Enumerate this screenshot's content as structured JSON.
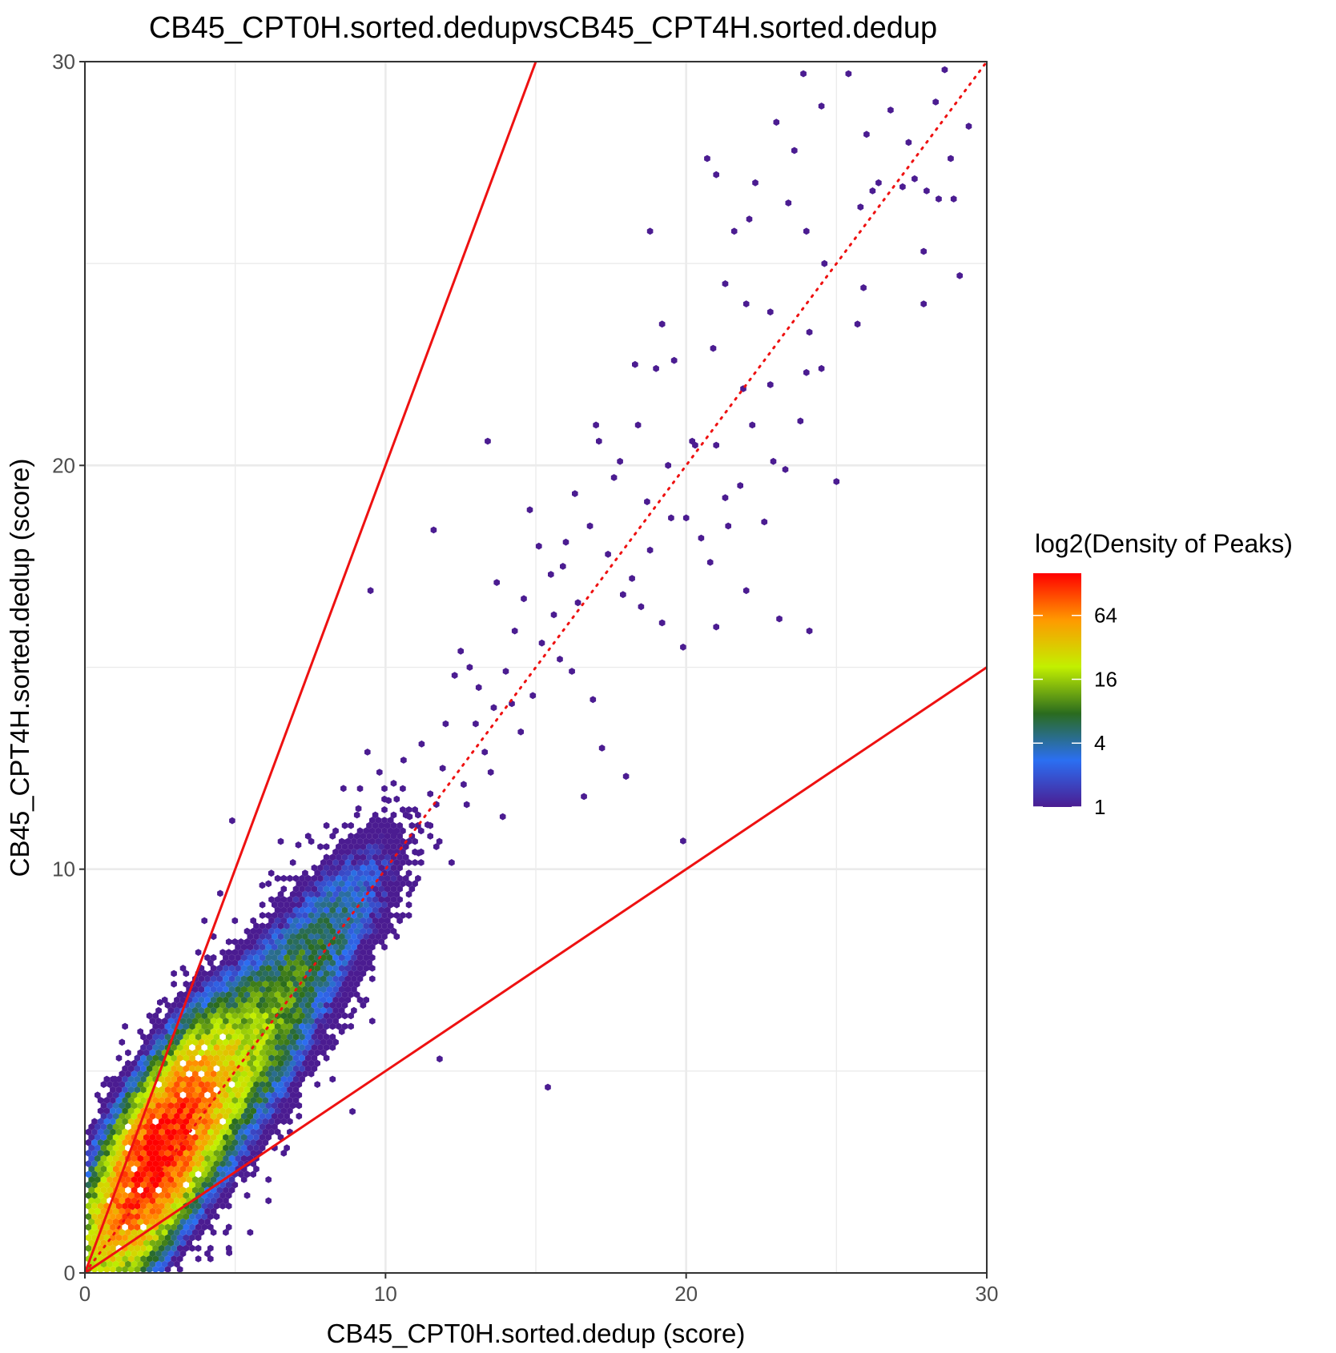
{
  "chart_data": {
    "type": "heatmap",
    "subtype": "hexbin density scatter",
    "title": "CB45_CPT0H.sorted.dedupvsCB45_CPT4H.sorted.dedup",
    "xlabel": "CB45_CPT0H.sorted.dedup (score)",
    "ylabel": "CB45_CPT4H.sorted.dedup (score)",
    "xlim": [
      0,
      30
    ],
    "ylim": [
      0,
      30
    ],
    "x_ticks": [
      "0",
      "10",
      "20",
      "30"
    ],
    "y_ticks": [
      "0",
      "10",
      "20",
      "30"
    ],
    "grid": true,
    "reference_lines": [
      {
        "name": "y = 2x",
        "slope": 2,
        "intercept": 0,
        "style": "solid",
        "color": "#ee1111"
      },
      {
        "name": "y = 0.5x",
        "slope": 0.5,
        "intercept": 0,
        "style": "solid",
        "color": "#ee1111"
      },
      {
        "name": "y = x",
        "slope": 1,
        "intercept": 0,
        "style": "dotted",
        "color": "#ee1111"
      }
    ],
    "legend": {
      "title": "log2(Density of Peaks)",
      "position": "right",
      "scale": "log2",
      "breaks": [
        1,
        4,
        16,
        64
      ],
      "labels": [
        "1",
        "4",
        "16",
        "64"
      ],
      "max": 160,
      "colors": [
        "#4b1c91",
        "#2b6ff2",
        "#2a6b1e",
        "#c2f000",
        "#ff9900",
        "#ff0000"
      ]
    },
    "density_cores": [
      {
        "x": 2.4,
        "y": 2.9,
        "sx": 1.1,
        "sy": 1.4,
        "rho": 0.72,
        "peak": 150
      },
      {
        "x": 4.5,
        "y": 4.6,
        "sx": 1.7,
        "sy": 1.8,
        "rho": 0.82,
        "peak": 22
      },
      {
        "x": 8.0,
        "y": 8.4,
        "sx": 1.3,
        "sy": 1.3,
        "rho": 0.75,
        "peak": 4
      }
    ],
    "sparse_points": [
      [
        13.4,
        20.6
      ],
      [
        20.3,
        20.5
      ],
      [
        19.2,
        23.5
      ],
      [
        18.8,
        25.8
      ],
      [
        14.8,
        18.9
      ],
      [
        11.6,
        18.4
      ],
      [
        15.9,
        17.5
      ],
      [
        17.0,
        21.0
      ],
      [
        21.6,
        25.8
      ],
      [
        22.3,
        27.0
      ],
      [
        23.4,
        26.5
      ],
      [
        24.6,
        25.0
      ],
      [
        25.4,
        29.7
      ],
      [
        28.6,
        29.8
      ],
      [
        26.4,
        27.0
      ],
      [
        27.4,
        28.0
      ],
      [
        27.9,
        24.0
      ],
      [
        28.4,
        26.6
      ],
      [
        29.1,
        24.7
      ],
      [
        25.0,
        19.6
      ],
      [
        24.1,
        15.9
      ],
      [
        22.0,
        16.9
      ],
      [
        21.0,
        16.0
      ],
      [
        19.9,
        15.5
      ],
      [
        23.1,
        16.2
      ],
      [
        18.0,
        12.3
      ],
      [
        17.2,
        13.0
      ],
      [
        16.6,
        11.8
      ],
      [
        19.9,
        10.7
      ],
      [
        15.4,
        4.6
      ],
      [
        13.9,
        11.3
      ],
      [
        13.6,
        14.0
      ],
      [
        12.5,
        15.4
      ],
      [
        9.5,
        16.9
      ],
      [
        7.1,
        10.6
      ],
      [
        4.9,
        11.2
      ],
      [
        6.2,
        9.9
      ],
      [
        5.9,
        9.6
      ],
      [
        4.5,
        9.4
      ],
      [
        3.2,
        6.9
      ],
      [
        1.0,
        4.8
      ],
      [
        2.5,
        6.7
      ],
      [
        4.8,
        0.5
      ],
      [
        11.8,
        5.3
      ],
      [
        8.9,
        4.0
      ],
      [
        20.7,
        27.6
      ],
      [
        21.0,
        27.2
      ],
      [
        23.9,
        29.7
      ],
      [
        23.0,
        28.5
      ],
      [
        22.0,
        24.0
      ],
      [
        22.8,
        23.8
      ],
      [
        24.0,
        25.8
      ],
      [
        25.9,
        24.4
      ],
      [
        26.2,
        26.8
      ],
      [
        25.8,
        26.4
      ],
      [
        20.0,
        18.7
      ],
      [
        21.3,
        19.2
      ],
      [
        21.9,
        21.9
      ],
      [
        22.2,
        21.0
      ],
      [
        23.3,
        19.9
      ],
      [
        24.5,
        22.4
      ],
      [
        24.0,
        22.3
      ],
      [
        16.8,
        18.5
      ],
      [
        17.6,
        19.7
      ],
      [
        18.4,
        21.0
      ],
      [
        17.8,
        20.1
      ],
      [
        16.3,
        19.3
      ],
      [
        14.6,
        16.7
      ],
      [
        15.1,
        18.0
      ],
      [
        13.7,
        17.1
      ],
      [
        12.0,
        13.6
      ],
      [
        12.8,
        15.0
      ],
      [
        14.2,
        14.1
      ],
      [
        15.6,
        16.3
      ],
      [
        18.2,
        17.2
      ],
      [
        19.5,
        18.7
      ],
      [
        20.5,
        18.2
      ],
      [
        21.8,
        19.5
      ],
      [
        22.6,
        18.6
      ],
      [
        26.8,
        28.8
      ],
      [
        27.6,
        27.1
      ],
      [
        28.0,
        26.8
      ],
      [
        28.8,
        27.6
      ],
      [
        27.2,
        26.9
      ],
      [
        29.4,
        28.4
      ],
      [
        28.3,
        29.0
      ],
      [
        26.0,
        28.2
      ],
      [
        24.5,
        28.9
      ],
      [
        23.6,
        27.8
      ],
      [
        22.1,
        26.1
      ],
      [
        21.3,
        24.5
      ],
      [
        20.9,
        22.9
      ],
      [
        19.6,
        22.6
      ],
      [
        19.0,
        22.4
      ],
      [
        18.3,
        22.5
      ],
      [
        17.1,
        20.6
      ],
      [
        16.0,
        18.1
      ],
      [
        15.5,
        17.3
      ],
      [
        14.3,
        15.9
      ],
      [
        13.1,
        14.5
      ],
      [
        12.3,
        14.8
      ],
      [
        11.2,
        13.1
      ],
      [
        10.6,
        12.7
      ],
      [
        9.8,
        12.4
      ],
      [
        10.1,
        11.7
      ],
      [
        9.1,
        11.5
      ],
      [
        8.6,
        12.0
      ],
      [
        9.4,
        12.9
      ],
      [
        11.9,
        12.5
      ],
      [
        13.3,
        12.9
      ],
      [
        14.5,
        13.4
      ],
      [
        16.9,
        14.2
      ],
      [
        20.2,
        20.6
      ],
      [
        22.8,
        22.0
      ],
      [
        23.8,
        21.1
      ],
      [
        24.1,
        23.3
      ],
      [
        25.7,
        23.5
      ],
      [
        27.9,
        25.3
      ],
      [
        28.9,
        26.6
      ],
      [
        22.9,
        20.1
      ],
      [
        21.0,
        20.5
      ],
      [
        19.4,
        20.0
      ],
      [
        18.7,
        19.1
      ],
      [
        17.4,
        17.8
      ],
      [
        16.4,
        16.6
      ],
      [
        15.2,
        15.6
      ],
      [
        14.0,
        14.9
      ],
      [
        13.0,
        13.6
      ],
      [
        12.6,
        12.1
      ],
      [
        11.4,
        11.1
      ],
      [
        10.8,
        11.3
      ],
      [
        16.2,
        14.9
      ],
      [
        17.9,
        16.8
      ],
      [
        18.8,
        17.9
      ],
      [
        20.8,
        17.6
      ],
      [
        21.4,
        18.5
      ],
      [
        19.2,
        16.1
      ],
      [
        18.5,
        16.5
      ],
      [
        15.8,
        15.2
      ],
      [
        14.9,
        14.3
      ],
      [
        13.5,
        12.4
      ],
      [
        12.7,
        11.6
      ],
      [
        11.1,
        10.4
      ],
      [
        10.3,
        10.9
      ]
    ]
  }
}
